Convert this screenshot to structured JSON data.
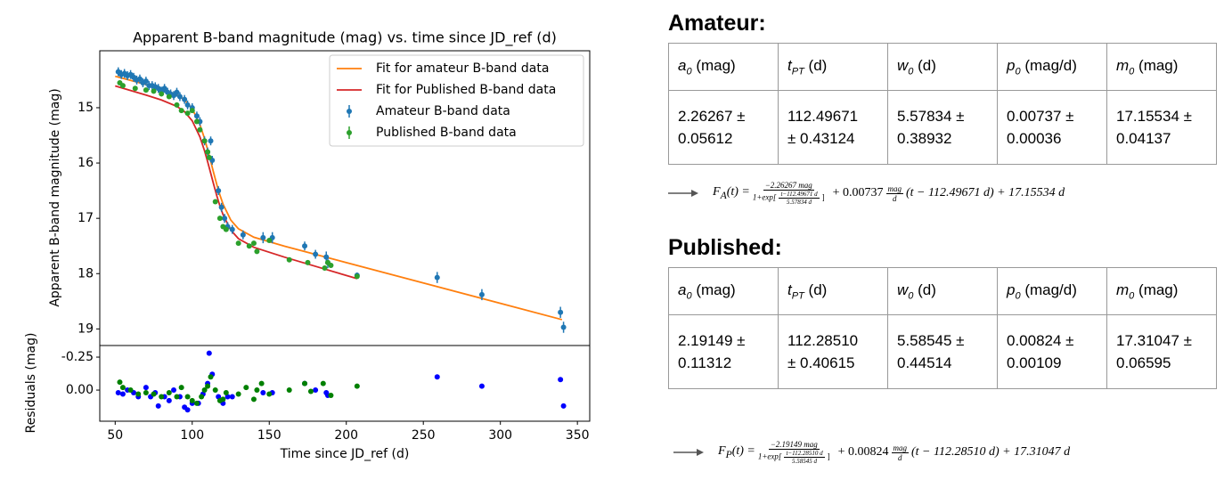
{
  "chart_data": [
    {
      "type": "line",
      "title": "Apparent B-band magnitude (mag) vs. time since JD_ref (d)",
      "y_label": "Apparent B-band magnitude (mag)",
      "xlim": [
        40,
        358
      ],
      "ylim": [
        13.97,
        19.3
      ],
      "invert_y": true,
      "yticks": [
        15,
        16,
        17,
        18,
        19
      ],
      "grid": false,
      "legend": "upper right",
      "series": [
        {
          "name": "Fit for amateur B-band data",
          "type": "line",
          "color": "#ff7f0e",
          "x": [
            50,
            60,
            70,
            80,
            90,
            95,
            100,
            105,
            108,
            110,
            112,
            114,
            116,
            118,
            120,
            125,
            130,
            140,
            160,
            200,
            250,
            300,
            340
          ],
          "values": [
            14.432,
            14.506,
            14.58,
            14.66,
            14.766,
            14.858,
            15.018,
            15.305,
            15.558,
            15.757,
            15.97,
            16.186,
            16.393,
            16.581,
            16.743,
            17.03,
            17.19,
            17.342,
            17.505,
            17.8,
            18.169,
            18.537,
            18.832
          ]
        },
        {
          "name": "Fit for Published B-band data",
          "type": "line",
          "color": "#d62728",
          "x": [
            50,
            60,
            70,
            80,
            90,
            95,
            100,
            105,
            108,
            110,
            112,
            114,
            116,
            118,
            120,
            125,
            130,
            140,
            160,
            180,
            207
          ],
          "values": [
            14.606,
            14.688,
            14.771,
            14.86,
            14.975,
            15.072,
            15.236,
            15.527,
            15.779,
            15.975,
            16.184,
            16.396,
            16.597,
            16.778,
            16.934,
            17.211,
            17.368,
            17.524,
            17.703,
            17.868,
            18.091
          ]
        },
        {
          "name": "Amateur B-band data",
          "type": "errorbar",
          "color": "#1f77b4",
          "x": [
            52,
            54,
            56,
            58,
            60,
            62,
            64,
            66,
            68,
            70,
            72,
            74,
            76,
            78,
            80,
            82,
            84,
            86,
            88,
            90,
            92,
            95,
            97,
            100,
            103,
            105,
            108,
            110,
            112,
            113,
            117,
            119,
            121,
            123,
            126,
            133,
            146,
            152,
            173,
            180,
            187,
            188,
            207,
            259,
            288,
            339,
            341
          ],
          "values": [
            14.35,
            14.4,
            14.38,
            14.42,
            14.4,
            14.45,
            14.5,
            14.48,
            14.55,
            14.52,
            14.6,
            14.6,
            14.62,
            14.65,
            14.7,
            14.65,
            14.72,
            14.75,
            14.78,
            14.72,
            14.8,
            14.85,
            14.95,
            15.0,
            15.15,
            15.25,
            15.6,
            15.8,
            15.6,
            15.95,
            16.5,
            16.8,
            17.0,
            17.15,
            17.2,
            17.3,
            17.35,
            17.35,
            17.5,
            17.65,
            17.7,
            17.8,
            18.03,
            18.07,
            18.38,
            18.7,
            18.97
          ],
          "errors": [
            0.08,
            0.08,
            0.08,
            0.08,
            0.08,
            0.08,
            0.08,
            0.08,
            0.08,
            0.08,
            0.08,
            0.08,
            0.08,
            0.08,
            0.08,
            0.08,
            0.08,
            0.08,
            0.08,
            0.08,
            0.08,
            0.08,
            0.08,
            0.08,
            0.08,
            0.08,
            0.08,
            0.08,
            0.08,
            0.08,
            0.08,
            0.08,
            0.08,
            0.08,
            0.08,
            0.08,
            0.1,
            0.1,
            0.08,
            0.08,
            0.1,
            0.1,
            0.05,
            0.1,
            0.1,
            0.1,
            0.1
          ]
        },
        {
          "name": "Published B-band data",
          "type": "errorbar",
          "color": "#2ca02c",
          "x": [
            53,
            55,
            63,
            70,
            75,
            80,
            85,
            90,
            93,
            97,
            100,
            103,
            105,
            108,
            110,
            111,
            115,
            118,
            120,
            122,
            130,
            137,
            140,
            142,
            150,
            163,
            175,
            186,
            188,
            190,
            207
          ],
          "values": [
            14.55,
            14.6,
            14.65,
            14.68,
            14.7,
            14.75,
            14.8,
            14.95,
            15.05,
            15.1,
            15.05,
            15.25,
            15.4,
            15.6,
            15.8,
            15.9,
            16.7,
            17.0,
            17.15,
            17.2,
            17.45,
            17.5,
            17.45,
            17.6,
            17.4,
            17.75,
            17.8,
            17.9,
            17.8,
            17.85,
            18.05
          ],
          "errors": [
            0.03,
            0.03,
            0.03,
            0.03,
            0.03,
            0.03,
            0.03,
            0.03,
            0.03,
            0.03,
            0.03,
            0.03,
            0.03,
            0.03,
            0.03,
            0.03,
            0.03,
            0.03,
            0.03,
            0.03,
            0.03,
            0.03,
            0.03,
            0.03,
            0.03,
            0.03,
            0.03,
            0.03,
            0.03,
            0.03,
            0.03
          ]
        }
      ]
    },
    {
      "type": "scatter",
      "y_label": "Residuals (mag)",
      "x_label": "Time since JD_ref (d)",
      "xlim": [
        40,
        358
      ],
      "ylim": [
        -0.338,
        0.236
      ],
      "invert_y": true,
      "xticks": [
        50,
        100,
        150,
        200,
        250,
        300,
        350
      ],
      "yticks": [
        -0.25,
        {
          "value": 0,
          "label": "0.00"
        }
      ],
      "grid": false,
      "series": [
        {
          "color": "#0000ff",
          "x": [
            52,
            55,
            58,
            62,
            65,
            70,
            73,
            76,
            78,
            82,
            85,
            88,
            92,
            95,
            97,
            100,
            104,
            107,
            110,
            111,
            113,
            117,
            120,
            123,
            126,
            146,
            152,
            173,
            180,
            187,
            188,
            259,
            288,
            339,
            341
          ],
          "values": [
            0.02,
            0.03,
            0.0,
            0.02,
            0.05,
            -0.02,
            0.05,
            0.02,
            0.12,
            0.05,
            0.08,
            0.0,
            0.05,
            0.13,
            0.15,
            0.1,
            0.1,
            0.03,
            -0.05,
            -0.28,
            -0.12,
            0.05,
            0.1,
            0.05,
            0.05,
            0.02,
            0.02,
            -0.05,
            0.0,
            0.02,
            0.04,
            -0.1,
            -0.03,
            -0.08,
            0.12
          ]
        },
        {
          "color": "#008000",
          "x": [
            53,
            55,
            60,
            65,
            70,
            75,
            80,
            85,
            90,
            93,
            97,
            100,
            103,
            106,
            108,
            110,
            112,
            115,
            118,
            120,
            122,
            130,
            135,
            140,
            142,
            145,
            150,
            163,
            173,
            177,
            185,
            190,
            207
          ],
          "values": [
            -0.06,
            -0.02,
            0.0,
            0.03,
            0.02,
            0.03,
            0.05,
            0.02,
            0.05,
            -0.02,
            0.05,
            0.08,
            0.1,
            0.05,
            0.0,
            -0.03,
            -0.1,
            0.0,
            0.08,
            0.07,
            0.02,
            0.03,
            -0.02,
            0.07,
            0.0,
            -0.05,
            0.03,
            0.0,
            -0.05,
            0.01,
            -0.05,
            0.04,
            -0.03
          ]
        }
      ]
    }
  ],
  "panels": [
    {
      "heading": "Amateur:",
      "header": [
        {
          "symbol": "a",
          "sub": "0",
          "unit": "(mag)"
        },
        {
          "symbol": "t",
          "sub": "PT",
          "unit": "(d)"
        },
        {
          "symbol": "w",
          "sub": "0",
          "unit": "(d)"
        },
        {
          "symbol": "p",
          "sub": "0",
          "unit": "(mag/d)"
        },
        {
          "symbol": "m",
          "sub": "0",
          "unit": "(mag)"
        }
      ],
      "row": [
        "2.26267 ± 0.05612",
        "112.49671 ± 0.43124",
        "5.57834 ± 0.38932",
        "0.00737 ± 0.00036",
        "17.15534 ± 0.04137"
      ],
      "formula": {
        "lhs": "F",
        "lhs_sub": "A",
        "lhs_tail": "(t) =",
        "num": "−2.26267 mag",
        "den_head": "1+exp[",
        "den_num": "t−112.49671 d",
        "den_den": "5.57834 d",
        "den_tail": "]",
        "mid": "+ 0.00737",
        "unit_num": "mag",
        "unit_den": "d",
        "tail": "(t − 112.49671 d) + 17.15534 d"
      }
    },
    {
      "heading": "Published:",
      "header": [
        {
          "symbol": "a",
          "sub": "0",
          "unit": "(mag)"
        },
        {
          "symbol": "t",
          "sub": "PT",
          "unit": "(d)"
        },
        {
          "symbol": "w",
          "sub": "0",
          "unit": "(d)"
        },
        {
          "symbol": "p",
          "sub": "0",
          "unit": "(mag/d)"
        },
        {
          "symbol": "m",
          "sub": "0",
          "unit": "(mag)"
        }
      ],
      "row": [
        "2.19149 ± 0.11312",
        "112.28510 ± 0.40615",
        "5.58545 ± 0.44514",
        "0.00824 ± 0.00109",
        "17.31047 ± 0.06595"
      ],
      "formula": {
        "lhs": "F",
        "lhs_sub": "P",
        "lhs_tail": "(t) =",
        "num": "−2.19149 mag",
        "den_head": "1+exp[",
        "den_num": "t−112.28510 d",
        "den_den": "5.58545 d",
        "den_tail": "]",
        "mid": "+ 0.00824",
        "unit_num": "mag",
        "unit_den": "d",
        "tail": "(t − 112.28510 d) + 17.31047 d"
      }
    }
  ]
}
